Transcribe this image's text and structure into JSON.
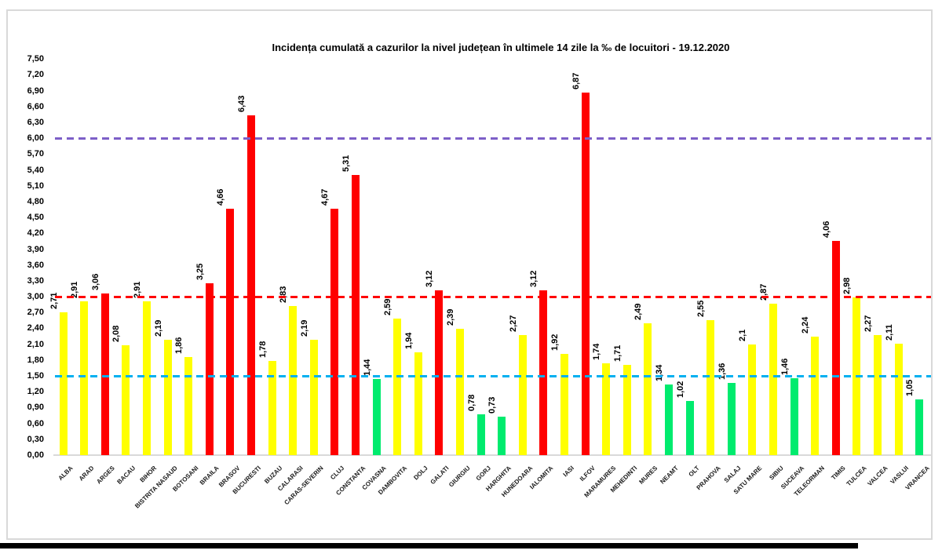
{
  "page": {
    "background": "#ffffff"
  },
  "chart_data": {
    "type": "bar",
    "title": "Incidența cumulată a cazurilor la nivel județean în ultimele 14 zile la ‰ de locuitori - 19.12.2020",
    "xlabel": "",
    "ylabel": "",
    "ylim": [
      0,
      7.5
    ],
    "y_tick_step": 0.3,
    "y_tick_labels": [
      "7,50",
      "7,20",
      "6,90",
      "6,60",
      "6,30",
      "6,00",
      "5,70",
      "5,40",
      "5,10",
      "4,80",
      "4,50",
      "4,20",
      "3,90",
      "3,60",
      "3,30",
      "3,00",
      "2,70",
      "2,40",
      "2,10",
      "1,80",
      "1,50",
      "1,20",
      "0,90",
      "0,60",
      "0,30",
      "0,00"
    ],
    "grid": false,
    "legend": false,
    "categories": [
      "ALBA",
      "ARAD",
      "ARGES",
      "BACAU",
      "BIHOR",
      "BISTRITA NASAUD",
      "BOTOSANI",
      "BRAILA",
      "BRASOV",
      "BUCURESTI",
      "BUZAU",
      "CALARASI",
      "CARAS-SEVERIN",
      "CLUJ",
      "CONSTANTA",
      "COVASNA",
      "DAMBOVITA",
      "DOLJ",
      "GALATI",
      "GIURGIU",
      "GORJ",
      "HARGHITA",
      "HUNEDOARA",
      "IALOMITA",
      "IASI",
      "ILFOV",
      "MARAMURES",
      "MEHEDINTI",
      "MURES",
      "NEAMT",
      "OLT",
      "PRAHOVA",
      "SALAJ",
      "SATU MARE",
      "SIBIU",
      "SUCEAVA",
      "TELEORMAN",
      "TIMIS",
      "TULCEA",
      "VALCEA",
      "VASLUI",
      "VRANCEA"
    ],
    "values": [
      2.71,
      2.91,
      3.06,
      2.08,
      2.91,
      2.19,
      1.86,
      3.25,
      4.66,
      6.43,
      1.78,
      2.83,
      2.19,
      4.67,
      5.31,
      1.44,
      2.59,
      1.94,
      3.12,
      2.39,
      0.78,
      0.73,
      2.27,
      3.12,
      1.92,
      6.87,
      1.74,
      1.71,
      2.49,
      1.34,
      1.02,
      2.55,
      1.36,
      2.1,
      2.87,
      1.46,
      2.24,
      4.06,
      2.98,
      2.27,
      2.11,
      1.05
    ],
    "value_labels": [
      "2,71",
      "2,91",
      "3,06",
      "2,08",
      "2,91",
      "2,19",
      "1,86",
      "3,25",
      "4,66",
      "6,43",
      "1,78",
      "2,83",
      "2,19",
      "4,67",
      "5,31",
      "1,44",
      "2,59",
      "1,94",
      "3,12",
      "2,39",
      "0,78",
      "0,73",
      "2,27",
      "3,12",
      "1,92",
      "6,87",
      "1,74",
      "1,71",
      "2,49",
      "1,34",
      "1,02",
      "2,55",
      "1,36",
      "2,1",
      "2,87",
      "1,46",
      "2,24",
      "4,06",
      "2,98",
      "2,27",
      "2,11",
      "1,05"
    ],
    "bar_color_keys": [
      "yellow",
      "yellow",
      "red",
      "yellow",
      "yellow",
      "yellow",
      "yellow",
      "red",
      "red",
      "red",
      "yellow",
      "yellow",
      "yellow",
      "red",
      "red",
      "green",
      "yellow",
      "yellow",
      "red",
      "yellow",
      "green",
      "green",
      "yellow",
      "red",
      "yellow",
      "red",
      "yellow",
      "yellow",
      "yellow",
      "green",
      "green",
      "yellow",
      "green",
      "yellow",
      "yellow",
      "green",
      "yellow",
      "red",
      "yellow",
      "yellow",
      "yellow",
      "green"
    ],
    "colors": {
      "yellow": "#FFFF00",
      "red": "#FF0000",
      "green": "#00EB6E"
    },
    "thresholds": [
      {
        "value": 1.5,
        "color": "#00B0F0",
        "name": "threshold-line-blue-1-50"
      },
      {
        "value": 3.0,
        "color": "#FF0000",
        "name": "threshold-line-red-3-00"
      },
      {
        "value": 6.0,
        "color": "#7D5FC8",
        "name": "threshold-line-purple-6-00"
      }
    ]
  }
}
